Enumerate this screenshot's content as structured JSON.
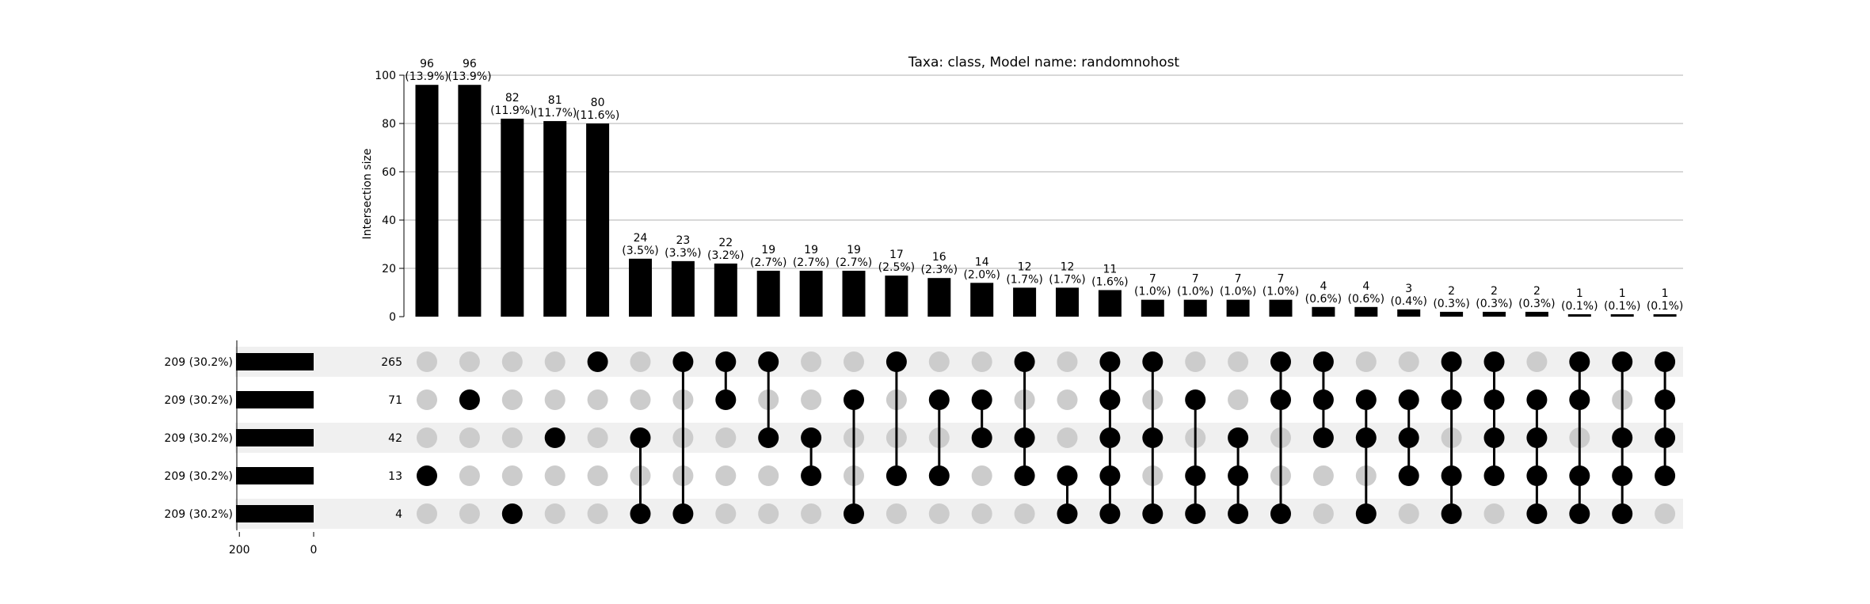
{
  "chart_data": {
    "type": "bar",
    "title": "Taxa: class, Model name: randomnohost",
    "ylabel": "Intersection size",
    "ylim": [
      0,
      100
    ],
    "yticks": [
      "0",
      "20",
      "40",
      "60",
      "80",
      "100"
    ],
    "grid": true,
    "bar_color": "#000000",
    "inactive_dot_color": "#cccccc",
    "stripe_color": "#f0f0f0",
    "values": [
      96,
      96,
      82,
      81,
      80,
      24,
      23,
      22,
      19,
      19,
      19,
      17,
      16,
      14,
      12,
      12,
      11,
      7,
      7,
      7,
      7,
      4,
      4,
      3,
      2,
      2,
      2,
      1,
      1,
      1
    ],
    "value_labels": [
      "96",
      "96",
      "82",
      "81",
      "80",
      "24",
      "23",
      "22",
      "19",
      "19",
      "19",
      "17",
      "16",
      "14",
      "12",
      "12",
      "11",
      "7",
      "7",
      "7",
      "7",
      "4",
      "4",
      "3",
      "2",
      "2",
      "2",
      "1",
      "1",
      "1"
    ],
    "percent_labels": [
      "(13.9%)",
      "(13.9%)",
      "(11.9%)",
      "(11.7%)",
      "(11.6%)",
      "(3.5%)",
      "(3.3%)",
      "(3.2%)",
      "(2.7%)",
      "(2.7%)",
      "(2.7%)",
      "(2.5%)",
      "(2.3%)",
      "(2.0%)",
      "(1.7%)",
      "(1.7%)",
      "(1.6%)",
      "(1.0%)",
      "(1.0%)",
      "(1.0%)",
      "(1.0%)",
      "(0.6%)",
      "(0.6%)",
      "(0.4%)",
      "(0.3%)",
      "(0.3%)",
      "(0.3%)",
      "(0.1%)",
      "(0.1%)",
      "(0.1%)"
    ],
    "sets": [
      {
        "label": "209 (30.2%)",
        "size": 209,
        "count_label": "265"
      },
      {
        "label": "209 (30.2%)",
        "size": 209,
        "count_label": "71"
      },
      {
        "label": "209 (30.2%)",
        "size": 209,
        "count_label": "42"
      },
      {
        "label": "209 (30.2%)",
        "size": 209,
        "count_label": "13"
      },
      {
        "label": "209 (30.2%)",
        "size": 209,
        "count_label": "4"
      }
    ],
    "set_size_xlim": [
      0,
      209
    ],
    "set_size_ticks": [
      "200",
      "0"
    ],
    "matrix": [
      [
        3
      ],
      [
        1
      ],
      [
        4
      ],
      [
        2
      ],
      [
        0
      ],
      [
        2,
        4
      ],
      [
        0,
        4
      ],
      [
        0,
        1
      ],
      [
        0,
        2
      ],
      [
        2,
        3
      ],
      [
        1,
        4
      ],
      [
        0,
        3
      ],
      [
        1,
        3
      ],
      [
        1,
        2
      ],
      [
        0,
        2,
        3
      ],
      [
        3,
        4
      ],
      [
        0,
        1,
        2,
        3,
        4
      ],
      [
        0,
        2,
        4
      ],
      [
        1,
        3,
        4
      ],
      [
        2,
        3,
        4
      ],
      [
        0,
        1,
        4
      ],
      [
        0,
        1,
        2
      ],
      [
        1,
        2,
        4
      ],
      [
        1,
        2,
        3
      ],
      [
        0,
        1,
        3,
        4
      ],
      [
        0,
        1,
        2,
        3
      ],
      [
        1,
        2,
        3,
        4
      ],
      [
        0,
        1,
        3,
        4
      ],
      [
        0,
        2,
        3,
        4
      ],
      [
        0,
        1,
        2,
        3
      ]
    ]
  }
}
